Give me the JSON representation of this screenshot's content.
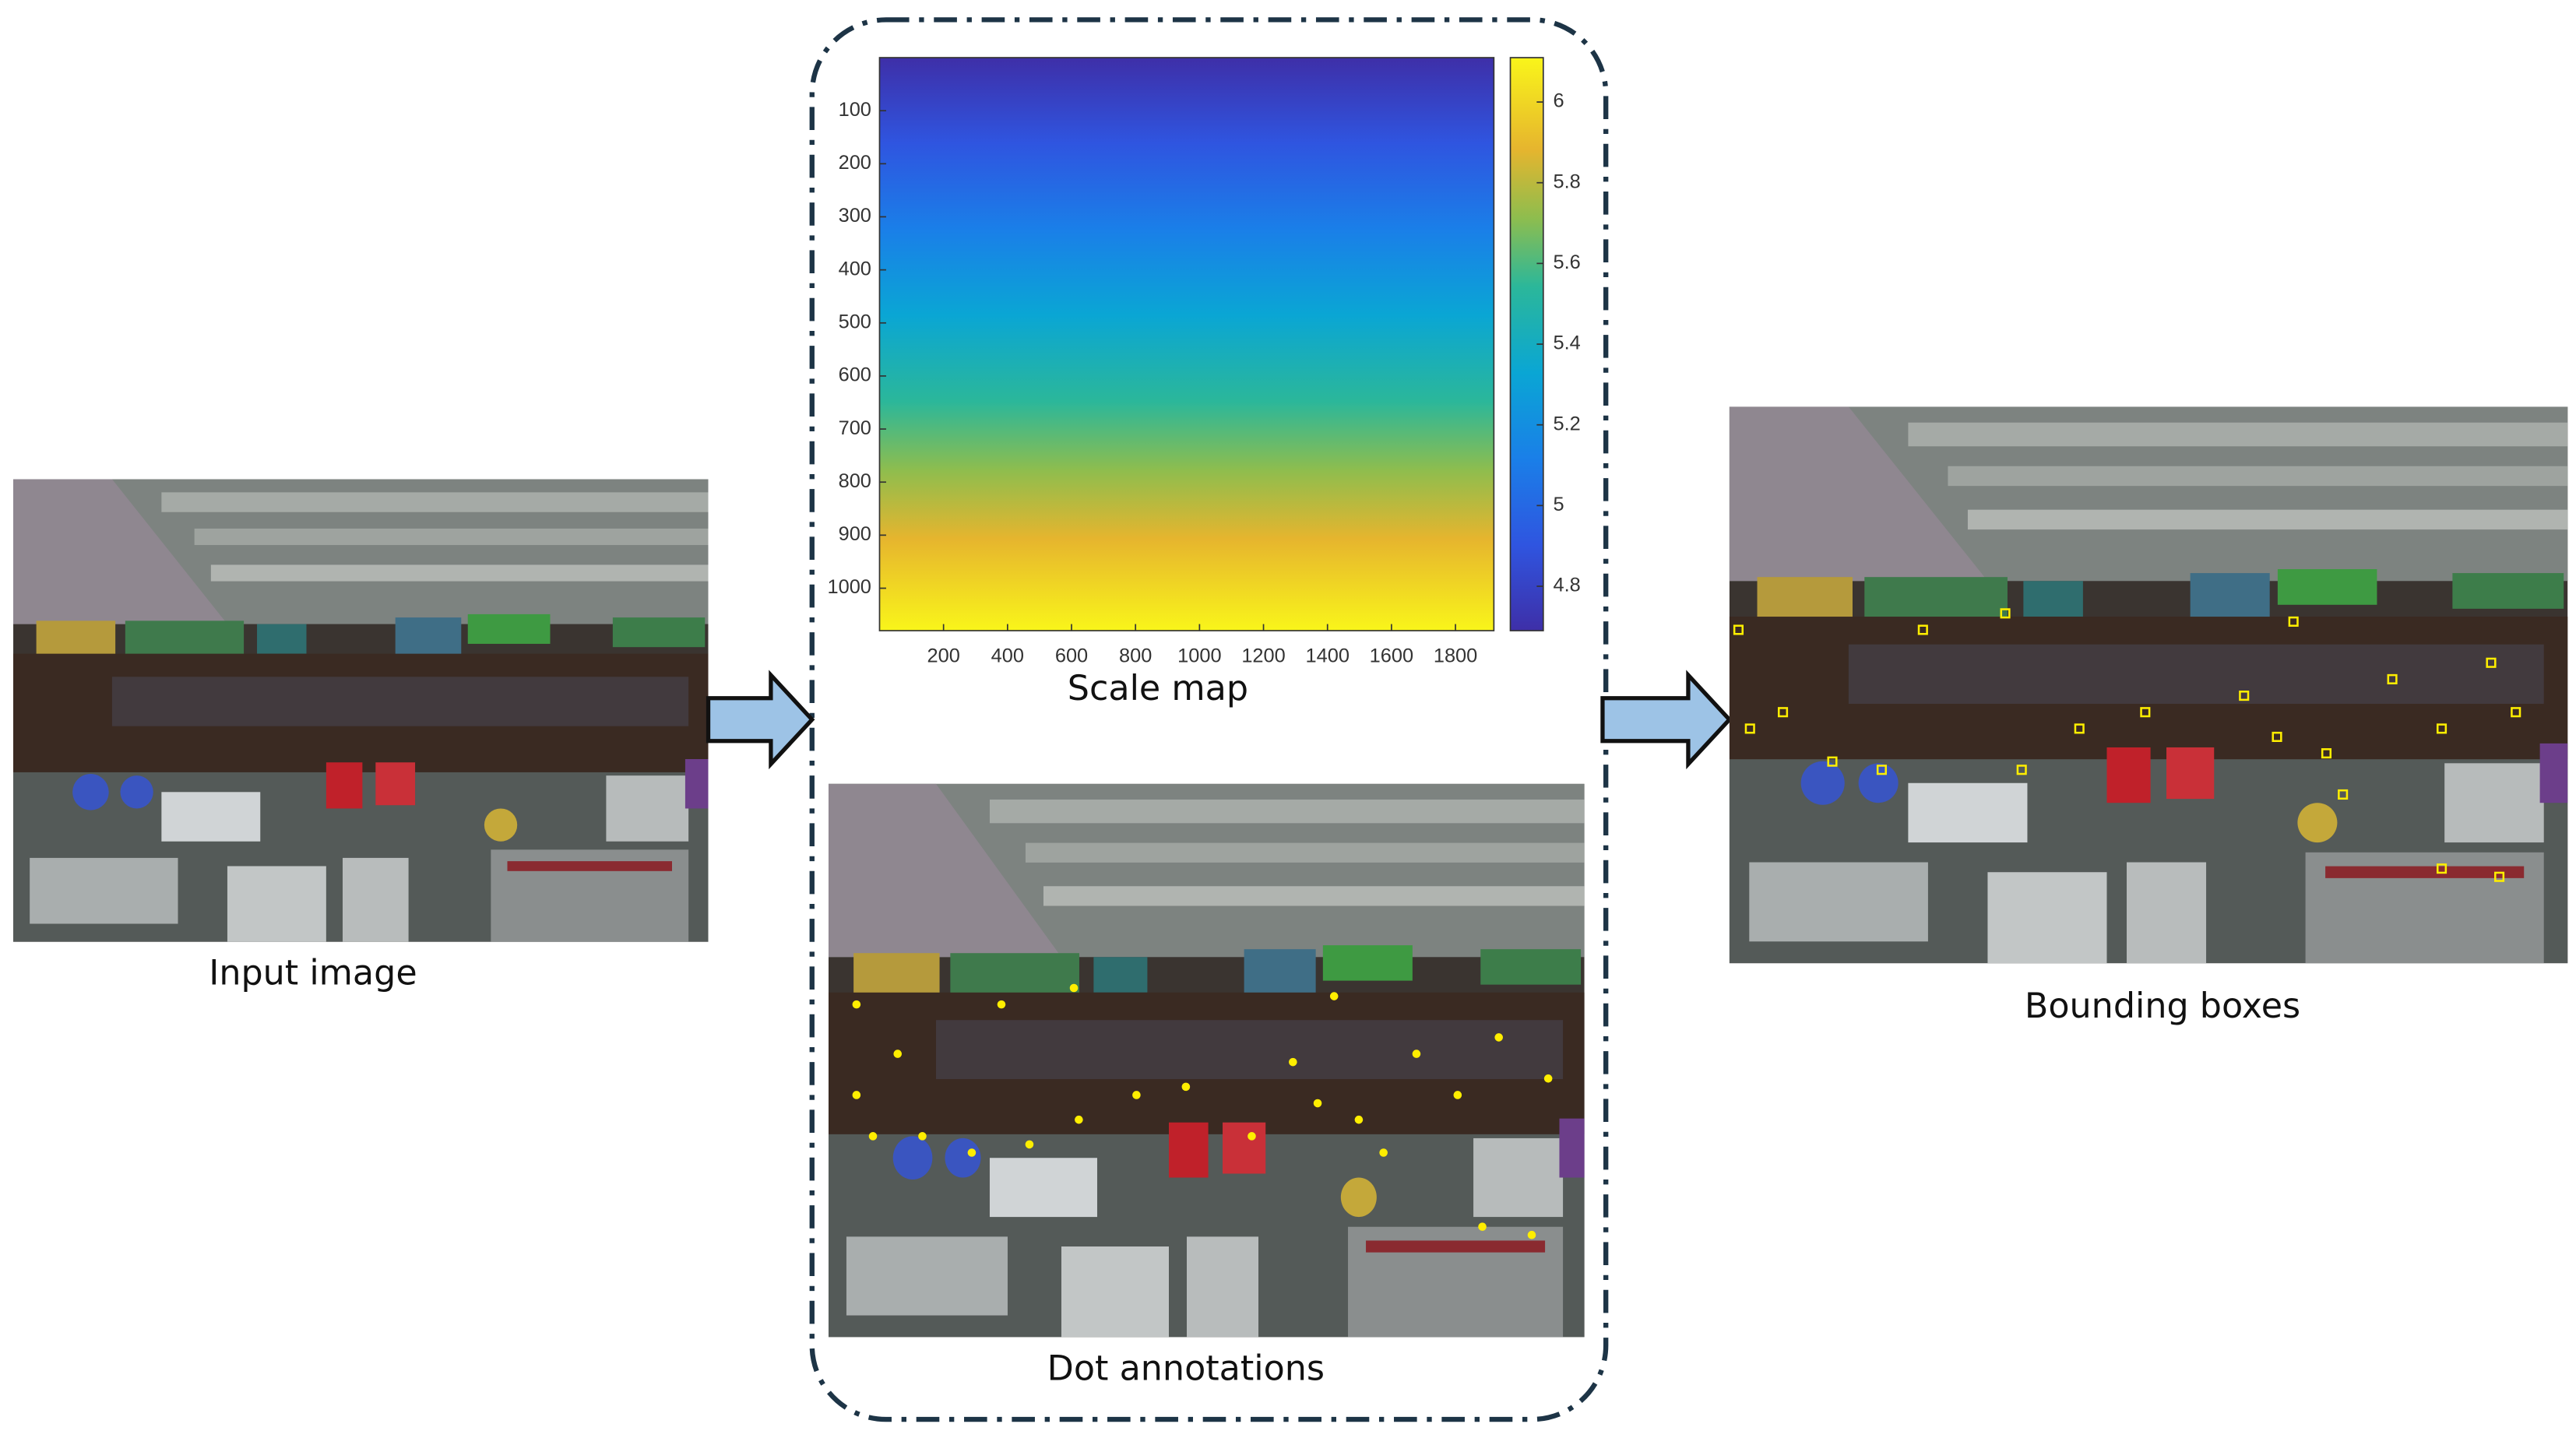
{
  "input_image": {
    "caption": "Input image"
  },
  "scale_map": {
    "type": "heatmap",
    "caption": "Scale map",
    "xlim": [
      0,
      1920
    ],
    "xticks": [
      200,
      400,
      600,
      800,
      1000,
      1200,
      1400,
      1600,
      1800
    ],
    "ylim": [
      0,
      1080
    ],
    "yticks": [
      100,
      200,
      300,
      400,
      500,
      600,
      700,
      800,
      900,
      1000
    ],
    "colorbar_lim": [
      4.69,
      6.11
    ],
    "colorbar_ticks": [
      4.8,
      5,
      5.2,
      5.4,
      5.6,
      5.8,
      6
    ]
  },
  "dot_annotations": {
    "caption": "Dot annotations"
  },
  "bounding_boxes": {
    "caption": "Bounding boxes"
  }
}
